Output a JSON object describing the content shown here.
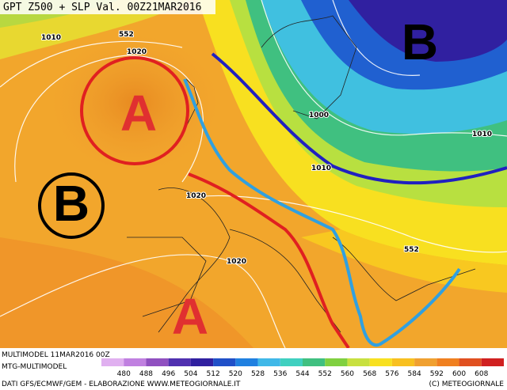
{
  "title": "GPT Z500 + SLP Val. 00Z21MAR2016",
  "pressure_centers": [
    {
      "label": "A"
    },
    {
      "label": "B"
    },
    {
      "label": "B"
    },
    {
      "label": "A"
    }
  ],
  "contour_labels": [
    "1010",
    "552",
    "1020",
    "1000",
    "1010",
    "1010",
    "1020",
    "1020",
    "552"
  ],
  "footer": {
    "model": "MULTIMODEL 11MAR2016 00Z",
    "source": "MTG-MULTIMODEL",
    "credits": "DATI GFS/ECMWF/GEM - ELABORAZIONE WWW.METEOGIORNALE.IT",
    "copyright": "(C) METEOGIORNALE",
    "scale": [
      480,
      488,
      496,
      504,
      512,
      520,
      528,
      536,
      544,
      552,
      560,
      568,
      576,
      584,
      592,
      600,
      608
    ]
  }
}
